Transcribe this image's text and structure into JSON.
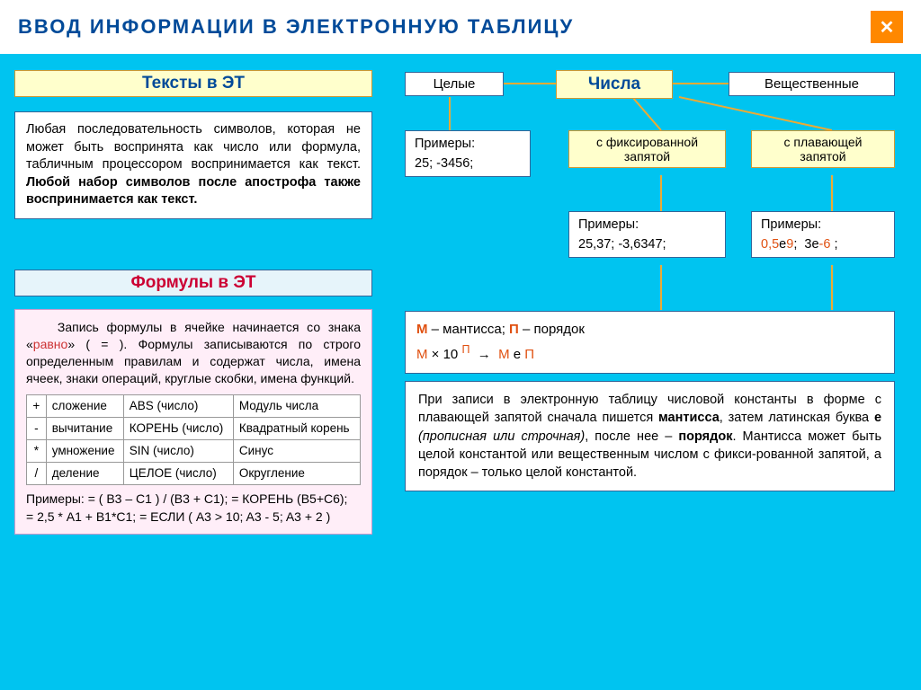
{
  "header": {
    "title": "ВВОД  ИНФОРМАЦИИ  В  ЭЛЕКТРОННУЮ  ТАБЛИЦУ",
    "close_glyph": "✕"
  },
  "left": {
    "texts_header": "Тексты  в  ЭТ",
    "texts_body_plain": "Любая последовательность символов, которая не может быть воспринята как число или формула, табличным процессором воспринимается как текст. ",
    "texts_body_bold": "Любой набор символов после апострофа также воспринимается как текст.",
    "formulas_header": "Формулы  в  ЭТ",
    "formulas_intro_1": "Запись формулы в ячейке начинается со знака «",
    "formulas_intro_red": "равно",
    "formulas_intro_2": "» ( = ). Формулы записываются по строго определенным правилам и содержат числа, имена ячеек, знаки операций, круглые скобки, имена функций.",
    "ops": {
      "rows": [
        [
          "+",
          "сложение",
          "ABS (число)",
          "Модуль числа"
        ],
        [
          "-",
          "вычитание",
          "КОРЕНЬ (число)",
          "Квадратный корень"
        ],
        [
          "*",
          "умножение",
          "SIN (число)",
          "Синус"
        ],
        [
          "/",
          "деление",
          "ЦЕЛОЕ (число)",
          "Округление"
        ]
      ]
    },
    "examples_label": "Примеры:",
    "examples_line1": "  = ( B3 – C1 ) / (B3 + C1);   = КОРЕНЬ (B5+C6);",
    "examples_line2": "= 2,5 * A1 + B1*C1;   = ЕСЛИ ( A3 > 10; A3 - 5; A3 + 2 )"
  },
  "right": {
    "node_integer": "Целые",
    "node_numbers": "Числа",
    "node_real": "Вещественные",
    "node_fixed": "с фиксированной\nзапятой",
    "node_float": "с плавающей\nзапятой",
    "ex_label": "Примеры:",
    "ex_int": "25;   -3456;",
    "ex_fixed": "25,37;   -3,6347;",
    "ex_float_parts": [
      "0,5",
      "е",
      "9",
      ";   3",
      "е",
      "-6",
      " ;"
    ],
    "mantissa_m": "М",
    "mantissa_m_label": " – мантисса;    ",
    "mantissa_p": "П",
    "mantissa_p_label": " – порядок",
    "mantissa_formula": "М × 10 П  →  М е П",
    "float_desc_1": "При записи в электронную таблицу числовой константы в форме с плавающей запятой сначала пишется ",
    "float_desc_b1": "мантисса",
    "float_desc_2": ", затем латинская буква ",
    "float_desc_b2": "е",
    "float_desc_3": " ",
    "float_desc_i": "(прописная или строчная)",
    "float_desc_4": ", после нее – ",
    "float_desc_b3": "порядок",
    "float_desc_5": ". Мантисса может быть целой константой или вещественным числом с фикси-рованной запятой, а порядок – только целой константой."
  },
  "colors": {
    "bg": "#00c4f0",
    "title": "#004a99",
    "accent": "#ff8800",
    "yellow": "#ffffcc",
    "red": "#cc3333",
    "connector": "#eeaa33"
  }
}
